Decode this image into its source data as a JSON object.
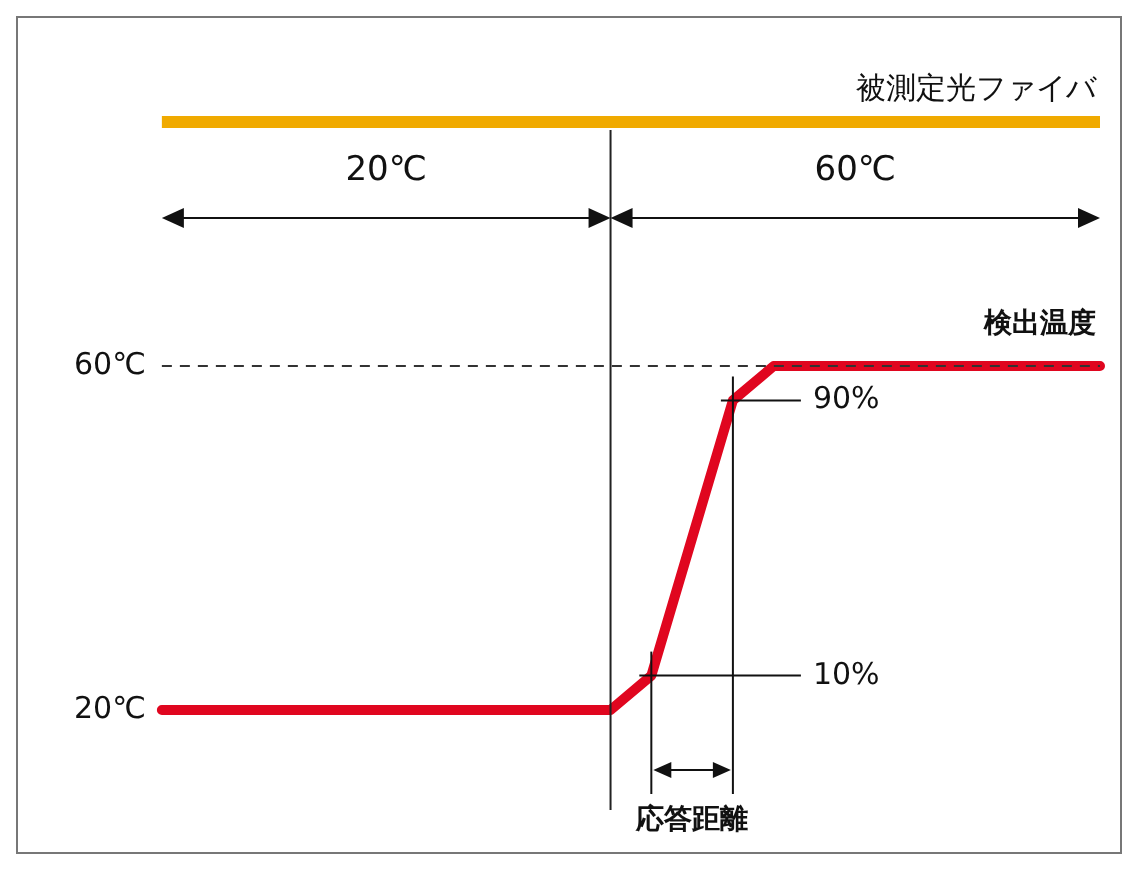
{
  "chart_data": {
    "type": "line",
    "categories": [
      null,
      null,
      null,
      null,
      null,
      null,
      null,
      null,
      null,
      null,
      null,
      null,
      null,
      null,
      null,
      null,
      null,
      null,
      null,
      null,
      null,
      null,
      null,
      null
    ],
    "series": [
      {
        "name": "検出温度",
        "color": "#e0061f",
        "values": [
          20,
          20,
          20,
          20,
          20,
          20,
          20,
          20,
          20,
          20,
          20,
          20,
          24,
          40,
          56,
          60,
          60,
          60,
          60,
          60,
          60,
          60,
          60,
          60
        ]
      }
    ],
    "ylim": [
      20,
      60
    ],
    "yticks": [
      {
        "value": 20,
        "label": "20℃"
      },
      {
        "value": 60,
        "label": "60℃"
      }
    ],
    "tick_labels": "y",
    "annotations": [
      "被測定光ファイバ",
      "20℃",
      "60℃",
      "90%",
      "10%",
      "応答距離"
    ]
  }
}
